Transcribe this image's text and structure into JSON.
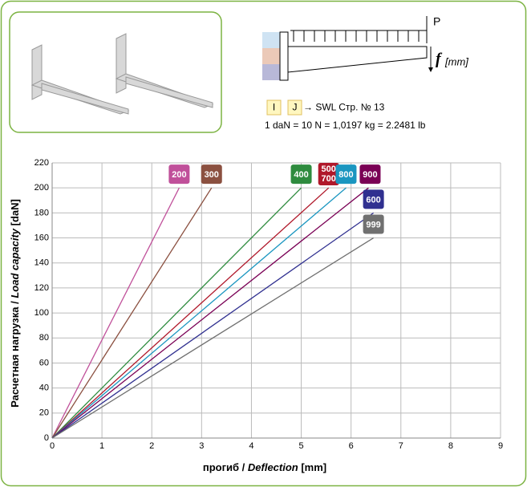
{
  "diagram": {
    "load_label": "P",
    "deflection_symbol": "f",
    "deflection_unit": "[mm]",
    "box_i": "I",
    "box_j": "J",
    "reference": "→ SWL Стр. № 13",
    "conversion": "1 daN = 10 N = 1,0197 kg = 2.2481 lb"
  },
  "chart_data": {
    "type": "line",
    "x_label": [
      "прогиб / ",
      "Deflection",
      " [mm]"
    ],
    "y_label": [
      "Расчетная нагрузка / ",
      "Load capacity",
      " [daN]"
    ],
    "xlim": [
      0,
      9
    ],
    "xticks": [
      0,
      1,
      2,
      3,
      4,
      5,
      6,
      7,
      8,
      9
    ],
    "ylim": [
      0,
      220
    ],
    "yticks": [
      0,
      20,
      40,
      60,
      80,
      100,
      120,
      140,
      160,
      180,
      200,
      220
    ],
    "grid": true,
    "series": [
      {
        "name": "200",
        "color": "#c0509a",
        "x": [
          0,
          2.55
        ],
        "values": [
          0,
          200
        ]
      },
      {
        "name": "300",
        "color": "#8b5040",
        "x": [
          0,
          3.2
        ],
        "values": [
          0,
          200
        ]
      },
      {
        "name": "400",
        "color": "#2e8b3e",
        "x": [
          0,
          5.0
        ],
        "values": [
          0,
          200
        ]
      },
      {
        "name": [
          "500",
          "700"
        ],
        "color": "#b0182a",
        "x": [
          0,
          5.55
        ],
        "values": [
          0,
          200
        ]
      },
      {
        "name": "800",
        "color": "#1a96c0",
        "x": [
          0,
          5.9
        ],
        "values": [
          0,
          200
        ]
      },
      {
        "name": "900",
        "color": "#7a0055",
        "x": [
          0,
          6.35
        ],
        "values": [
          0,
          200
        ]
      },
      {
        "name": "600",
        "color": "#303090",
        "x": [
          0,
          6.45
        ],
        "values": [
          0,
          180
        ]
      },
      {
        "name": "999",
        "color": "#707070",
        "x": [
          0,
          6.45
        ],
        "values": [
          0,
          160
        ]
      }
    ]
  }
}
